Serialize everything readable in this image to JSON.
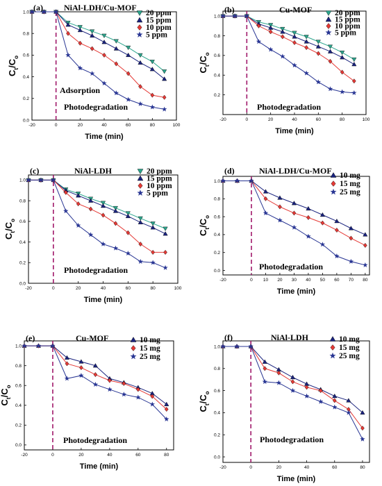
{
  "figure": {
    "y_axis_label": {
      "main": "C",
      "sub_t": "t",
      "slash": "/C",
      "sub_o": "o"
    }
  },
  "chart_data": [
    {
      "panel": "(a)",
      "title": "NiAl-LDH/Cu-MOF",
      "type": "line",
      "xlabel": "Time (min)",
      "xlim": [
        -20,
        100
      ],
      "ylim": [
        0,
        1.0
      ],
      "xticks": [
        "-20",
        "0",
        "20",
        "40",
        "60",
        "80",
        "100"
      ],
      "yticks": [
        "0.0",
        "0.2",
        "0.4",
        "0.6",
        "0.8",
        "1.0"
      ],
      "legend_position": "top-right",
      "annotations": [
        "Adsorption",
        "Photodegradation"
      ],
      "x": [
        -20,
        -10,
        0,
        10,
        20,
        30,
        40,
        50,
        60,
        70,
        80,
        90
      ],
      "series": [
        {
          "name": "20 ppm",
          "marker": "triangle-down",
          "color": "#2ca58d",
          "values": [
            1.0,
            1.0,
            1.0,
            0.9,
            0.86,
            0.82,
            0.78,
            0.73,
            0.67,
            0.6,
            0.54,
            0.45
          ]
        },
        {
          "name": "15 ppm",
          "marker": "triangle-up",
          "color": "#1a237e",
          "values": [
            1.0,
            1.0,
            1.0,
            0.88,
            0.83,
            0.78,
            0.72,
            0.66,
            0.6,
            0.53,
            0.47,
            0.38
          ]
        },
        {
          "name": "10 ppm",
          "marker": "diamond",
          "color": "#e53935",
          "values": [
            1.0,
            1.0,
            1.0,
            0.8,
            0.71,
            0.66,
            0.6,
            0.52,
            0.43,
            0.31,
            0.23,
            0.21
          ]
        },
        {
          "name": "5 ppm",
          "marker": "star",
          "color": "#283593",
          "values": [
            1.0,
            1.0,
            1.0,
            0.6,
            0.48,
            0.43,
            0.34,
            0.25,
            0.19,
            0.15,
            0.12,
            0.1
          ]
        }
      ]
    },
    {
      "panel": "(b)",
      "title": "Cu-MOF",
      "type": "line",
      "xlabel": "Time (min)",
      "xlim": [
        -20,
        100
      ],
      "ylim": [
        0,
        1.05
      ],
      "xticks": [
        "-20",
        "0",
        "20",
        "40",
        "60",
        "80",
        "100"
      ],
      "yticks": [
        "0.2",
        "0.4",
        "0.6",
        "0.8",
        "1.0"
      ],
      "legend_position": "top-right",
      "annotations": [
        "Photodegradation"
      ],
      "x": [
        -20,
        -10,
        0,
        10,
        20,
        30,
        40,
        50,
        60,
        70,
        80,
        90
      ],
      "series": [
        {
          "name": "20 ppm",
          "marker": "triangle-down",
          "color": "#2ca58d",
          "values": [
            1.0,
            1.0,
            1.0,
            0.94,
            0.91,
            0.87,
            0.83,
            0.79,
            0.74,
            0.69,
            0.63,
            0.56
          ]
        },
        {
          "name": "15 ppm",
          "marker": "triangle-up",
          "color": "#1a237e",
          "values": [
            1.0,
            1.0,
            1.0,
            0.92,
            0.88,
            0.84,
            0.79,
            0.74,
            0.69,
            0.64,
            0.58,
            0.51
          ]
        },
        {
          "name": "10 ppm",
          "marker": "diamond",
          "color": "#e53935",
          "values": [
            1.0,
            1.0,
            1.0,
            0.9,
            0.84,
            0.79,
            0.73,
            0.68,
            0.62,
            0.54,
            0.43,
            0.34
          ]
        },
        {
          "name": "5 ppm",
          "marker": "star",
          "color": "#283593",
          "values": [
            1.0,
            1.0,
            1.0,
            0.74,
            0.66,
            0.59,
            0.5,
            0.42,
            0.33,
            0.26,
            0.23,
            0.22
          ]
        }
      ]
    },
    {
      "panel": "(c)",
      "title": "NiAl-LDH",
      "type": "line",
      "xlabel": "Time (min)",
      "xlim": [
        -20,
        100
      ],
      "ylim": [
        0,
        1.05
      ],
      "xticks": [
        "-20",
        "0",
        "20",
        "40",
        "60",
        "80",
        "100"
      ],
      "yticks": [
        "0.0",
        "0.2",
        "0.4",
        "0.6",
        "0.8",
        "1.0"
      ],
      "legend_position": "top-right",
      "annotations": [
        "Photodegradation"
      ],
      "x": [
        -20,
        -10,
        0,
        10,
        20,
        30,
        40,
        50,
        60,
        70,
        80,
        90
      ],
      "series": [
        {
          "name": "20 ppm",
          "marker": "triangle-down",
          "color": "#2ca58d",
          "values": [
            1.0,
            1.0,
            1.0,
            0.91,
            0.87,
            0.82,
            0.78,
            0.73,
            0.68,
            0.63,
            0.58,
            0.53
          ]
        },
        {
          "name": "15 ppm",
          "marker": "triangle-up",
          "color": "#1a237e",
          "values": [
            1.0,
            1.0,
            1.0,
            0.9,
            0.85,
            0.8,
            0.75,
            0.7,
            0.65,
            0.59,
            0.54,
            0.48
          ]
        },
        {
          "name": "10 ppm",
          "marker": "diamond",
          "color": "#e53935",
          "values": [
            1.0,
            1.0,
            1.0,
            0.88,
            0.77,
            0.72,
            0.66,
            0.58,
            0.49,
            0.38,
            0.3,
            0.3
          ]
        },
        {
          "name": "5 ppm",
          "marker": "star",
          "color": "#283593",
          "values": [
            1.0,
            1.0,
            1.0,
            0.7,
            0.56,
            0.47,
            0.38,
            0.34,
            0.29,
            0.21,
            0.2,
            0.15
          ]
        }
      ]
    },
    {
      "panel": "(d)",
      "title": "NiAl-LDH/Cu-MOF",
      "type": "line",
      "xlabel": "Time (min)",
      "xlim": [
        -20,
        83
      ],
      "ylim": [
        -0.05,
        1.05
      ],
      "xticks": [
        "-20",
        "0",
        "10",
        "20",
        "30",
        "40",
        "50",
        "60",
        "70",
        "80"
      ],
      "yticks": [
        "0.0",
        "0.2",
        "0.4",
        "0.6",
        "0.8",
        "1.0"
      ],
      "legend_position": "top-right",
      "annotations": [
        "Photodegradation"
      ],
      "x": [
        -20,
        -10,
        0,
        10,
        20,
        30,
        40,
        50,
        60,
        70,
        80
      ],
      "series": [
        {
          "name": "10 mg",
          "marker": "triangle-up",
          "color": "#1a237e",
          "values": [
            1.0,
            1.0,
            1.0,
            0.88,
            0.81,
            0.75,
            0.69,
            0.62,
            0.55,
            0.47,
            0.4
          ]
        },
        {
          "name": "15 mg",
          "marker": "diamond",
          "color": "#e53935",
          "values": [
            1.0,
            1.0,
            1.0,
            0.8,
            0.71,
            0.64,
            0.59,
            0.53,
            0.45,
            0.36,
            0.28
          ]
        },
        {
          "name": "25 mg",
          "marker": "star",
          "color": "#283593",
          "values": [
            1.0,
            1.0,
            1.0,
            0.64,
            0.56,
            0.48,
            0.38,
            0.29,
            0.16,
            0.1,
            0.06
          ]
        }
      ]
    },
    {
      "panel": "(e)",
      "title": "Cu-MOF",
      "type": "line",
      "xlabel": "Time (min)",
      "xlim": [
        -20,
        85
      ],
      "ylim": [
        -0.05,
        1.05
      ],
      "xticks": [
        "-20",
        "0",
        "20",
        "40",
        "60",
        "80"
      ],
      "yticks": [
        "0.0",
        "0.2",
        "0.4",
        "0.6",
        "0.8",
        "1.0"
      ],
      "legend_position": "top-right",
      "annotations": [
        "Photodegradation"
      ],
      "x": [
        -20,
        -10,
        0,
        10,
        20,
        30,
        40,
        50,
        60,
        70,
        80
      ],
      "series": [
        {
          "name": "10 mg",
          "marker": "triangle-up",
          "color": "#1a237e",
          "values": [
            1.0,
            1.0,
            1.0,
            0.88,
            0.84,
            0.8,
            0.67,
            0.63,
            0.58,
            0.52,
            0.41
          ]
        },
        {
          "name": "15 mg",
          "marker": "diamond",
          "color": "#e53935",
          "values": [
            1.0,
            1.0,
            1.0,
            0.82,
            0.78,
            0.71,
            0.65,
            0.62,
            0.56,
            0.49,
            0.36
          ]
        },
        {
          "name": "25 mg",
          "marker": "star",
          "color": "#283593",
          "values": [
            1.0,
            1.0,
            1.0,
            0.67,
            0.7,
            0.61,
            0.56,
            0.51,
            0.48,
            0.41,
            0.26
          ]
        }
      ]
    },
    {
      "panel": "(f)",
      "title": "NiAl-LDH",
      "type": "line",
      "xlabel": "Time (min)",
      "xlim": [
        -20,
        85
      ],
      "ylim": [
        -0.05,
        1.05
      ],
      "xticks": [
        "-20",
        "0",
        "20",
        "40",
        "60",
        "80"
      ],
      "yticks": [
        "0.0",
        "0.2",
        "0.4",
        "0.6",
        "0.8",
        "1.0"
      ],
      "legend_position": "top-right",
      "annotations": [
        "Photodegradation"
      ],
      "x": [
        -20,
        -10,
        0,
        10,
        20,
        30,
        40,
        50,
        60,
        70,
        80
      ],
      "series": [
        {
          "name": "10 mg",
          "marker": "triangle-up",
          "color": "#1a237e",
          "values": [
            1.0,
            1.0,
            1.0,
            0.86,
            0.79,
            0.72,
            0.66,
            0.61,
            0.55,
            0.51,
            0.4
          ]
        },
        {
          "name": "15 mg",
          "marker": "diamond",
          "color": "#e53935",
          "values": [
            1.0,
            1.0,
            1.0,
            0.8,
            0.76,
            0.68,
            0.63,
            0.6,
            0.51,
            0.43,
            0.26
          ]
        },
        {
          "name": "25 mg",
          "marker": "star",
          "color": "#283593",
          "values": [
            1.0,
            1.0,
            1.0,
            0.68,
            0.67,
            0.6,
            0.55,
            0.5,
            0.45,
            0.4,
            0.16
          ]
        }
      ]
    }
  ]
}
